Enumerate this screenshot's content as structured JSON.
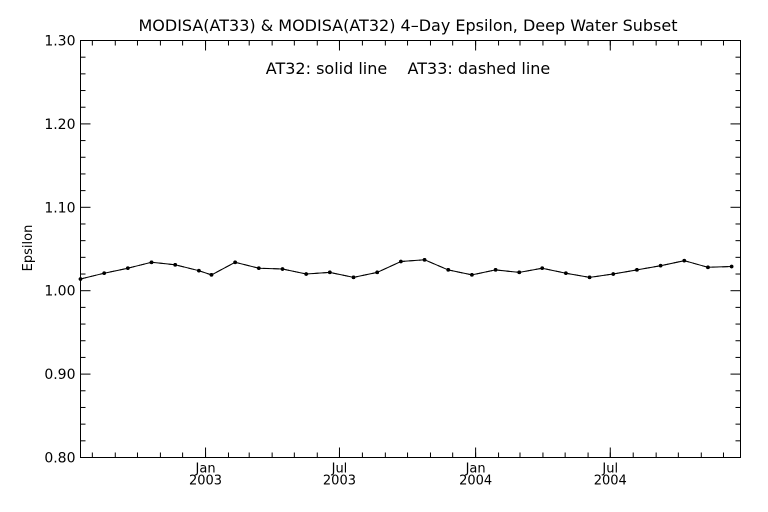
{
  "chart_data": {
    "type": "line",
    "title": "MODISA(AT33) & MODISA(AT32) 4–Day Epsilon, Deep Water Subset",
    "annotation": "AT32: solid line    AT33: dashed line",
    "ylabel": "Epsilon",
    "xlabel": "",
    "ylim": [
      0.8,
      1.3
    ],
    "xlim": [
      "2002-07-16",
      "2004-12-24"
    ],
    "y_ticks": [
      "0.80",
      "0.90",
      "1.00",
      "1.10",
      "1.20",
      "1.30"
    ],
    "y_tick_values": [
      0.8,
      0.9,
      1.0,
      1.1,
      1.2,
      1.3
    ],
    "x_ticks": [
      {
        "date": "2003-01-01",
        "month": "Jan",
        "year": "2003"
      },
      {
        "date": "2003-07-01",
        "month": "Jul",
        "year": "2003"
      },
      {
        "date": "2004-01-01",
        "month": "Jan",
        "year": "2004"
      },
      {
        "date": "2004-07-01",
        "month": "Jul",
        "year": "2004"
      }
    ],
    "grid": false,
    "marker_color": "#000000",
    "line_color": "#000000",
    "series": [
      {
        "name": "AT32",
        "style": "solid",
        "x": [
          "2002-07-16",
          "2002-08-17",
          "2002-09-18",
          "2002-10-20",
          "2002-11-21",
          "2002-12-23",
          "2003-01-09",
          "2003-02-10",
          "2003-03-14",
          "2003-04-15",
          "2003-05-17",
          "2003-06-18",
          "2003-07-20",
          "2003-08-21",
          "2003-09-22",
          "2003-10-24",
          "2003-11-25",
          "2003-12-27",
          "2004-01-28",
          "2004-02-29",
          "2004-03-31",
          "2004-05-02",
          "2004-06-03",
          "2004-07-05",
          "2004-08-06",
          "2004-09-07",
          "2004-10-09",
          "2004-11-10",
          "2004-12-12"
        ],
        "y": [
          1.014,
          1.021,
          1.027,
          1.034,
          1.031,
          1.024,
          1.019,
          1.034,
          1.027,
          1.026,
          1.02,
          1.022,
          1.016,
          1.022,
          1.035,
          1.037,
          1.025,
          1.019,
          1.025,
          1.022,
          1.027,
          1.021,
          1.016,
          1.02,
          1.025,
          1.03,
          1.036,
          1.028,
          1.029
        ]
      },
      {
        "name": "AT33",
        "style": "dashed",
        "x": [
          "2002-07-16",
          "2002-08-17",
          "2002-09-18",
          "2002-10-20",
          "2002-11-21",
          "2002-12-23",
          "2003-01-09",
          "2003-02-10",
          "2003-03-14",
          "2003-04-15",
          "2003-05-17",
          "2003-06-18",
          "2003-07-20",
          "2003-08-21",
          "2003-09-22",
          "2003-10-24",
          "2003-11-25",
          "2003-12-27",
          "2004-01-28",
          "2004-02-29",
          "2004-03-31",
          "2004-05-02",
          "2004-06-03",
          "2004-07-05",
          "2004-08-06",
          "2004-09-07",
          "2004-10-09",
          "2004-11-10",
          "2004-12-12"
        ],
        "y": [
          1.014,
          1.021,
          1.027,
          1.034,
          1.031,
          1.024,
          1.019,
          1.034,
          1.027,
          1.026,
          1.02,
          1.022,
          1.016,
          1.022,
          1.035,
          1.037,
          1.025,
          1.019,
          1.025,
          1.022,
          1.027,
          1.021,
          1.016,
          1.02,
          1.025,
          1.03,
          1.036,
          1.028,
          1.029
        ]
      }
    ]
  }
}
